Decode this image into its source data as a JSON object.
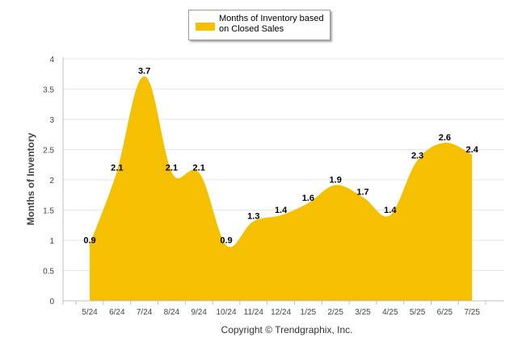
{
  "chart_data": {
    "type": "area",
    "title": "",
    "xlabel": "",
    "ylabel": "Months of Inventory",
    "categories": [
      "5/24",
      "6/24",
      "7/24",
      "8/24",
      "9/24",
      "10/24",
      "11/24",
      "12/24",
      "1/25",
      "2/25",
      "3/25",
      "4/25",
      "5/25",
      "6/25",
      "7/25"
    ],
    "series": [
      {
        "name": "Months of Inventory based on Closed Sales",
        "values": [
          0.9,
          2.1,
          3.7,
          2.1,
          2.1,
          0.9,
          1.3,
          1.4,
          1.6,
          1.9,
          1.7,
          1.4,
          2.3,
          2.6,
          2.4
        ],
        "color": "#f5c001"
      }
    ],
    "yticks": [
      "0",
      "0.5",
      "1",
      "1.5",
      "2",
      "2.5",
      "3",
      "3.5",
      "4"
    ],
    "ylim": [
      0,
      4
    ],
    "grid": true,
    "legend_position": "top-center"
  },
  "legend": {
    "label": "Months of Inventory based on Closed Sales"
  },
  "footer": {
    "copyright": "Copyright © Trendgraphix, Inc."
  }
}
